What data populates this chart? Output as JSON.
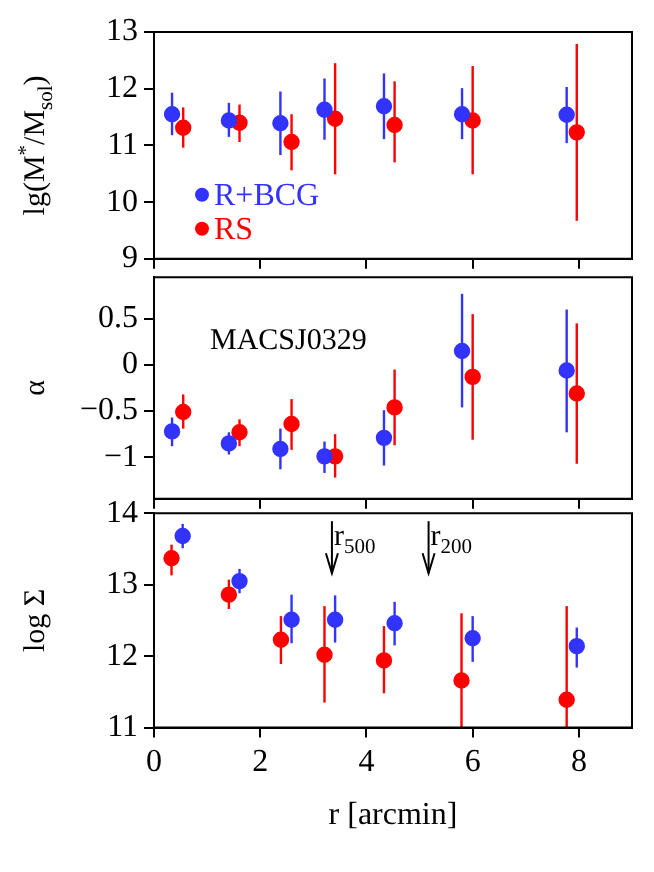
{
  "chart_data": [
    {
      "type": "scatter",
      "ylabel": "lg(M$^{*}$/M$_{sol}$)",
      "xlim": [
        0,
        9
      ],
      "xticks": [
        0,
        2,
        4,
        6,
        8
      ],
      "ylim": [
        9,
        13
      ],
      "yticks": [
        9,
        10,
        11,
        12,
        13
      ],
      "tick_labels": "y",
      "marker": "circle",
      "legend": "bottom left",
      "grid": false,
      "series": [
        {
          "name": "R+BCG",
          "color": "#3333ff",
          "x": [
            0.34,
            1.41,
            2.38,
            3.21,
            4.33,
            5.8,
            7.77
          ],
          "values": [
            11.55,
            11.44,
            11.39,
            11.63,
            11.69,
            11.55,
            11.54
          ],
          "errors": [
            [
              11.18,
              11.93
            ],
            [
              11.15,
              11.75
            ],
            [
              10.83,
              11.95
            ],
            [
              11.1,
              12.18
            ],
            [
              11.11,
              12.27
            ],
            [
              11.11,
              12.01
            ],
            [
              11.04,
              12.03
            ]
          ]
        },
        {
          "name": "RS",
          "color": "#ff0000",
          "x": [
            0.55,
            1.61,
            2.59,
            3.41,
            4.53,
            6.0,
            7.96
          ],
          "values": [
            11.31,
            11.4,
            11.06,
            11.47,
            11.36,
            11.44,
            11.23
          ],
          "errors": [
            [
              10.96,
              11.67
            ],
            [
              11.06,
              11.72
            ],
            [
              10.56,
              11.55
            ],
            [
              10.49,
              12.45
            ],
            [
              10.7,
              12.13
            ],
            [
              10.49,
              12.4
            ],
            [
              9.67,
              12.79
            ]
          ]
        }
      ]
    },
    {
      "type": "scatter",
      "ylabel": "α",
      "xlim": [
        0,
        9
      ],
      "xticks": [
        0,
        2,
        4,
        6,
        8
      ],
      "ylim": [
        -1.45,
        0.95
      ],
      "yticks": [
        -1,
        -0.5,
        0,
        0.5
      ],
      "tick_labels": "y",
      "marker": "circle",
      "grid": false,
      "annotations": [
        "MACSJ0329"
      ],
      "series": [
        {
          "color": "#3333ff",
          "x": [
            0.34,
            1.41,
            2.38,
            3.21,
            4.33,
            5.8,
            7.77
          ],
          "values": [
            -0.72,
            -0.85,
            -0.91,
            -0.99,
            -0.79,
            0.15,
            -0.06
          ],
          "errors": [
            [
              -0.88,
              -0.57
            ],
            [
              -0.97,
              -0.73
            ],
            [
              -1.13,
              -0.69
            ],
            [
              -1.17,
              -0.83
            ],
            [
              -1.09,
              -0.49
            ],
            [
              -0.46,
              0.77
            ],
            [
              -0.73,
              0.6
            ]
          ]
        },
        {
          "color": "#ff0000",
          "x": [
            0.55,
            1.61,
            2.59,
            3.41,
            4.53,
            6.0,
            7.96
          ],
          "values": [
            -0.51,
            -0.73,
            -0.64,
            -0.99,
            -0.46,
            -0.13,
            -0.31
          ],
          "errors": [
            [
              -0.69,
              -0.32
            ],
            [
              -0.88,
              -0.59
            ],
            [
              -0.92,
              -0.37
            ],
            [
              -1.22,
              -0.75
            ],
            [
              -0.87,
              -0.05
            ],
            [
              -0.81,
              0.55
            ],
            [
              -1.07,
              0.45
            ]
          ]
        }
      ]
    },
    {
      "type": "scatter",
      "ylabel": "log Σ",
      "xlabel": "r [arcmin]",
      "xlim": [
        0,
        9
      ],
      "xticks": [
        0,
        2,
        4,
        6,
        8
      ],
      "ylim": [
        11,
        14
      ],
      "yticks": [
        11,
        12,
        13,
        14
      ],
      "marker": "circle",
      "grid": false,
      "ref_lines": [
        {
          "axis": "x",
          "value": 3.35,
          "label": "r$_{500}$"
        },
        {
          "axis": "x",
          "value": 5.17,
          "label": "r$_{200}$"
        }
      ],
      "series": [
        {
          "color": "#3333ff",
          "x": [
            0.54,
            1.61,
            2.59,
            3.41,
            4.53,
            6.0,
            7.96
          ],
          "values": [
            13.68,
            13.05,
            12.51,
            12.51,
            12.46,
            12.25,
            12.14
          ],
          "errors": [
            [
              13.51,
              13.85
            ],
            [
              12.88,
              13.22
            ],
            [
              12.18,
              12.86
            ],
            [
              12.19,
              12.85
            ],
            [
              12.15,
              12.76
            ],
            [
              11.92,
              12.56
            ],
            [
              11.84,
              12.4
            ]
          ]
        },
        {
          "color": "#ff0000",
          "x": [
            0.33,
            1.41,
            2.39,
            3.21,
            4.33,
            5.79,
            7.77
          ],
          "values": [
            13.37,
            12.86,
            12.23,
            12.02,
            11.94,
            11.66,
            11.39
          ],
          "errors": [
            [
              13.13,
              13.56
            ],
            [
              12.66,
              13.07
            ],
            [
              11.89,
              12.56
            ],
            [
              11.35,
              12.7
            ],
            [
              11.48,
              12.42
            ],
            [
              11.0,
              12.6
            ],
            [
              11.0,
              12.7
            ]
          ]
        }
      ]
    }
  ]
}
